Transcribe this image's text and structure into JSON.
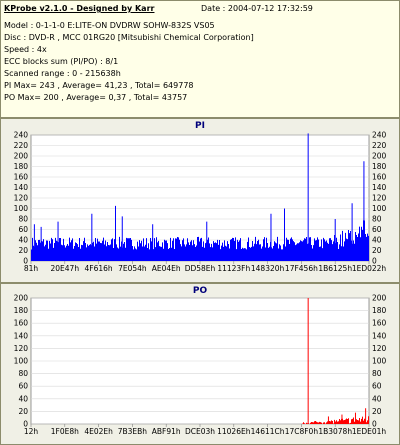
{
  "info": {
    "title": "KProbe v2.1.0 - Designed by Karr",
    "date": "Date : 2004-07-12 17:32:59",
    "lines": [
      "Model : 0-1-1-0 E:LITE-ON DVDRW SOHW-832S  VS05",
      "Disc : DVD-R , MCC 01RG20  [Mitsubishi Chemical Corporation]",
      "Speed : 4x",
      "ECC blocks sum (PI/PO) : 8/1",
      "Scanned range : 0 - 215638h",
      "PI Max= 243 , Average= 41,23 , Total= 649778",
      "PO Max= 200 , Average= 0,37 , Total= 43757"
    ]
  },
  "chart_data": [
    {
      "type": "area",
      "title": "PI",
      "color": "#0000ff",
      "ylim": [
        0,
        240
      ],
      "yticks": [
        0,
        20,
        40,
        60,
        80,
        100,
        120,
        140,
        160,
        180,
        200,
        220,
        240
      ],
      "xticks": [
        "81h",
        "20E47h",
        "4F616h",
        "7E054h",
        "AE04Eh",
        "DD58Eh",
        "11123Fh",
        "148320h",
        "17F456h",
        "1B6125h",
        "1ED022h"
      ],
      "baseline": 40,
      "spikes": [
        {
          "x": 0.01,
          "y": 70
        },
        {
          "x": 0.03,
          "y": 65
        },
        {
          "x": 0.08,
          "y": 75
        },
        {
          "x": 0.18,
          "y": 90
        },
        {
          "x": 0.25,
          "y": 105
        },
        {
          "x": 0.27,
          "y": 85
        },
        {
          "x": 0.36,
          "y": 70
        },
        {
          "x": 0.52,
          "y": 75
        },
        {
          "x": 0.71,
          "y": 90
        },
        {
          "x": 0.75,
          "y": 100
        },
        {
          "x": 0.82,
          "y": 243
        },
        {
          "x": 0.9,
          "y": 80
        },
        {
          "x": 0.95,
          "y": 110
        },
        {
          "x": 0.985,
          "y": 190
        }
      ]
    },
    {
      "type": "area",
      "title": "PO",
      "color": "#ff0000",
      "ylim": [
        0,
        200
      ],
      "yticks": [
        0,
        20,
        40,
        60,
        80,
        100,
        120,
        140,
        160,
        180,
        200
      ],
      "xticks": [
        "12h",
        "1F0E8h",
        "4E02Eh",
        "7B3EBh",
        "ABF91h",
        "DCE03h",
        "11026Eh",
        "14611Ch",
        "17C8F0h",
        "1B3078h",
        "1EDE01h"
      ],
      "spikes": [
        {
          "x": 0.82,
          "y": 200
        },
        {
          "x": 0.88,
          "y": 12
        },
        {
          "x": 0.92,
          "y": 15
        },
        {
          "x": 0.96,
          "y": 18
        },
        {
          "x": 0.99,
          "y": 25
        }
      ]
    }
  ]
}
